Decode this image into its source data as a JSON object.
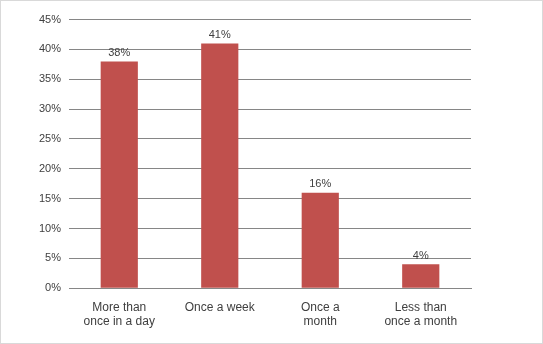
{
  "chart_data": {
    "type": "bar",
    "categories": [
      "More than once in a day",
      "Once a week",
      "Once a month",
      "Less than once a month"
    ],
    "values": [
      38,
      41,
      16,
      4
    ],
    "value_labels": [
      "38%",
      "41%",
      "16%",
      "4%"
    ],
    "color": "#c0504d",
    "ylim": [
      0,
      45
    ],
    "yticks": [
      {
        "value": 0,
        "label": "0%"
      },
      {
        "value": 5,
        "label": "5%"
      },
      {
        "value": 10,
        "label": "10%"
      },
      {
        "value": 15,
        "label": "15%"
      },
      {
        "value": 20,
        "label": "20%"
      },
      {
        "value": 25,
        "label": "25%"
      },
      {
        "value": 30,
        "label": "30%"
      },
      {
        "value": 35,
        "label": "35%"
      },
      {
        "value": 40,
        "label": "40%"
      },
      {
        "value": 45,
        "label": "45%"
      }
    ],
    "grid": true,
    "data_labels": true
  }
}
